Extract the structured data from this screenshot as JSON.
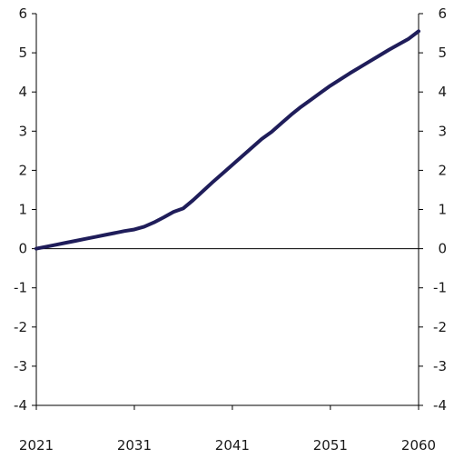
{
  "chart_data": {
    "type": "line",
    "title": "",
    "xlabel": "",
    "ylabel": "",
    "x": [
      2021,
      2022,
      2023,
      2024,
      2025,
      2026,
      2027,
      2028,
      2029,
      2030,
      2031,
      2032,
      2033,
      2034,
      2035,
      2036,
      2037,
      2038,
      2039,
      2040,
      2041,
      2042,
      2043,
      2044,
      2045,
      2046,
      2047,
      2048,
      2049,
      2050,
      2051,
      2052,
      2053,
      2054,
      2055,
      2056,
      2057,
      2058,
      2059,
      2060
    ],
    "series": [
      {
        "values": [
          0.0,
          0.05,
          0.1,
          0.15,
          0.2,
          0.25,
          0.3,
          0.35,
          0.4,
          0.45,
          0.49,
          0.56,
          0.67,
          0.8,
          0.94,
          1.03,
          1.24,
          1.47,
          1.7,
          1.92,
          2.14,
          2.36,
          2.58,
          2.8,
          2.98,
          3.2,
          3.42,
          3.62,
          3.8,
          3.98,
          4.16,
          4.32,
          4.48,
          4.63,
          4.78,
          4.93,
          5.08,
          5.22,
          5.36,
          5.55
        ],
        "color": "#1f1d5a"
      }
    ],
    "x_ticks": [
      "2021",
      "2031",
      "2041",
      "2051",
      "2060"
    ],
    "y_ticks": [
      "6",
      "5",
      "4",
      "3",
      "2",
      "1",
      "0",
      "-1",
      "-2",
      "-3",
      "-4"
    ],
    "xlim": [
      2021,
      2060
    ],
    "ylim": [
      -4,
      6
    ],
    "grid": false,
    "legend": "none"
  }
}
